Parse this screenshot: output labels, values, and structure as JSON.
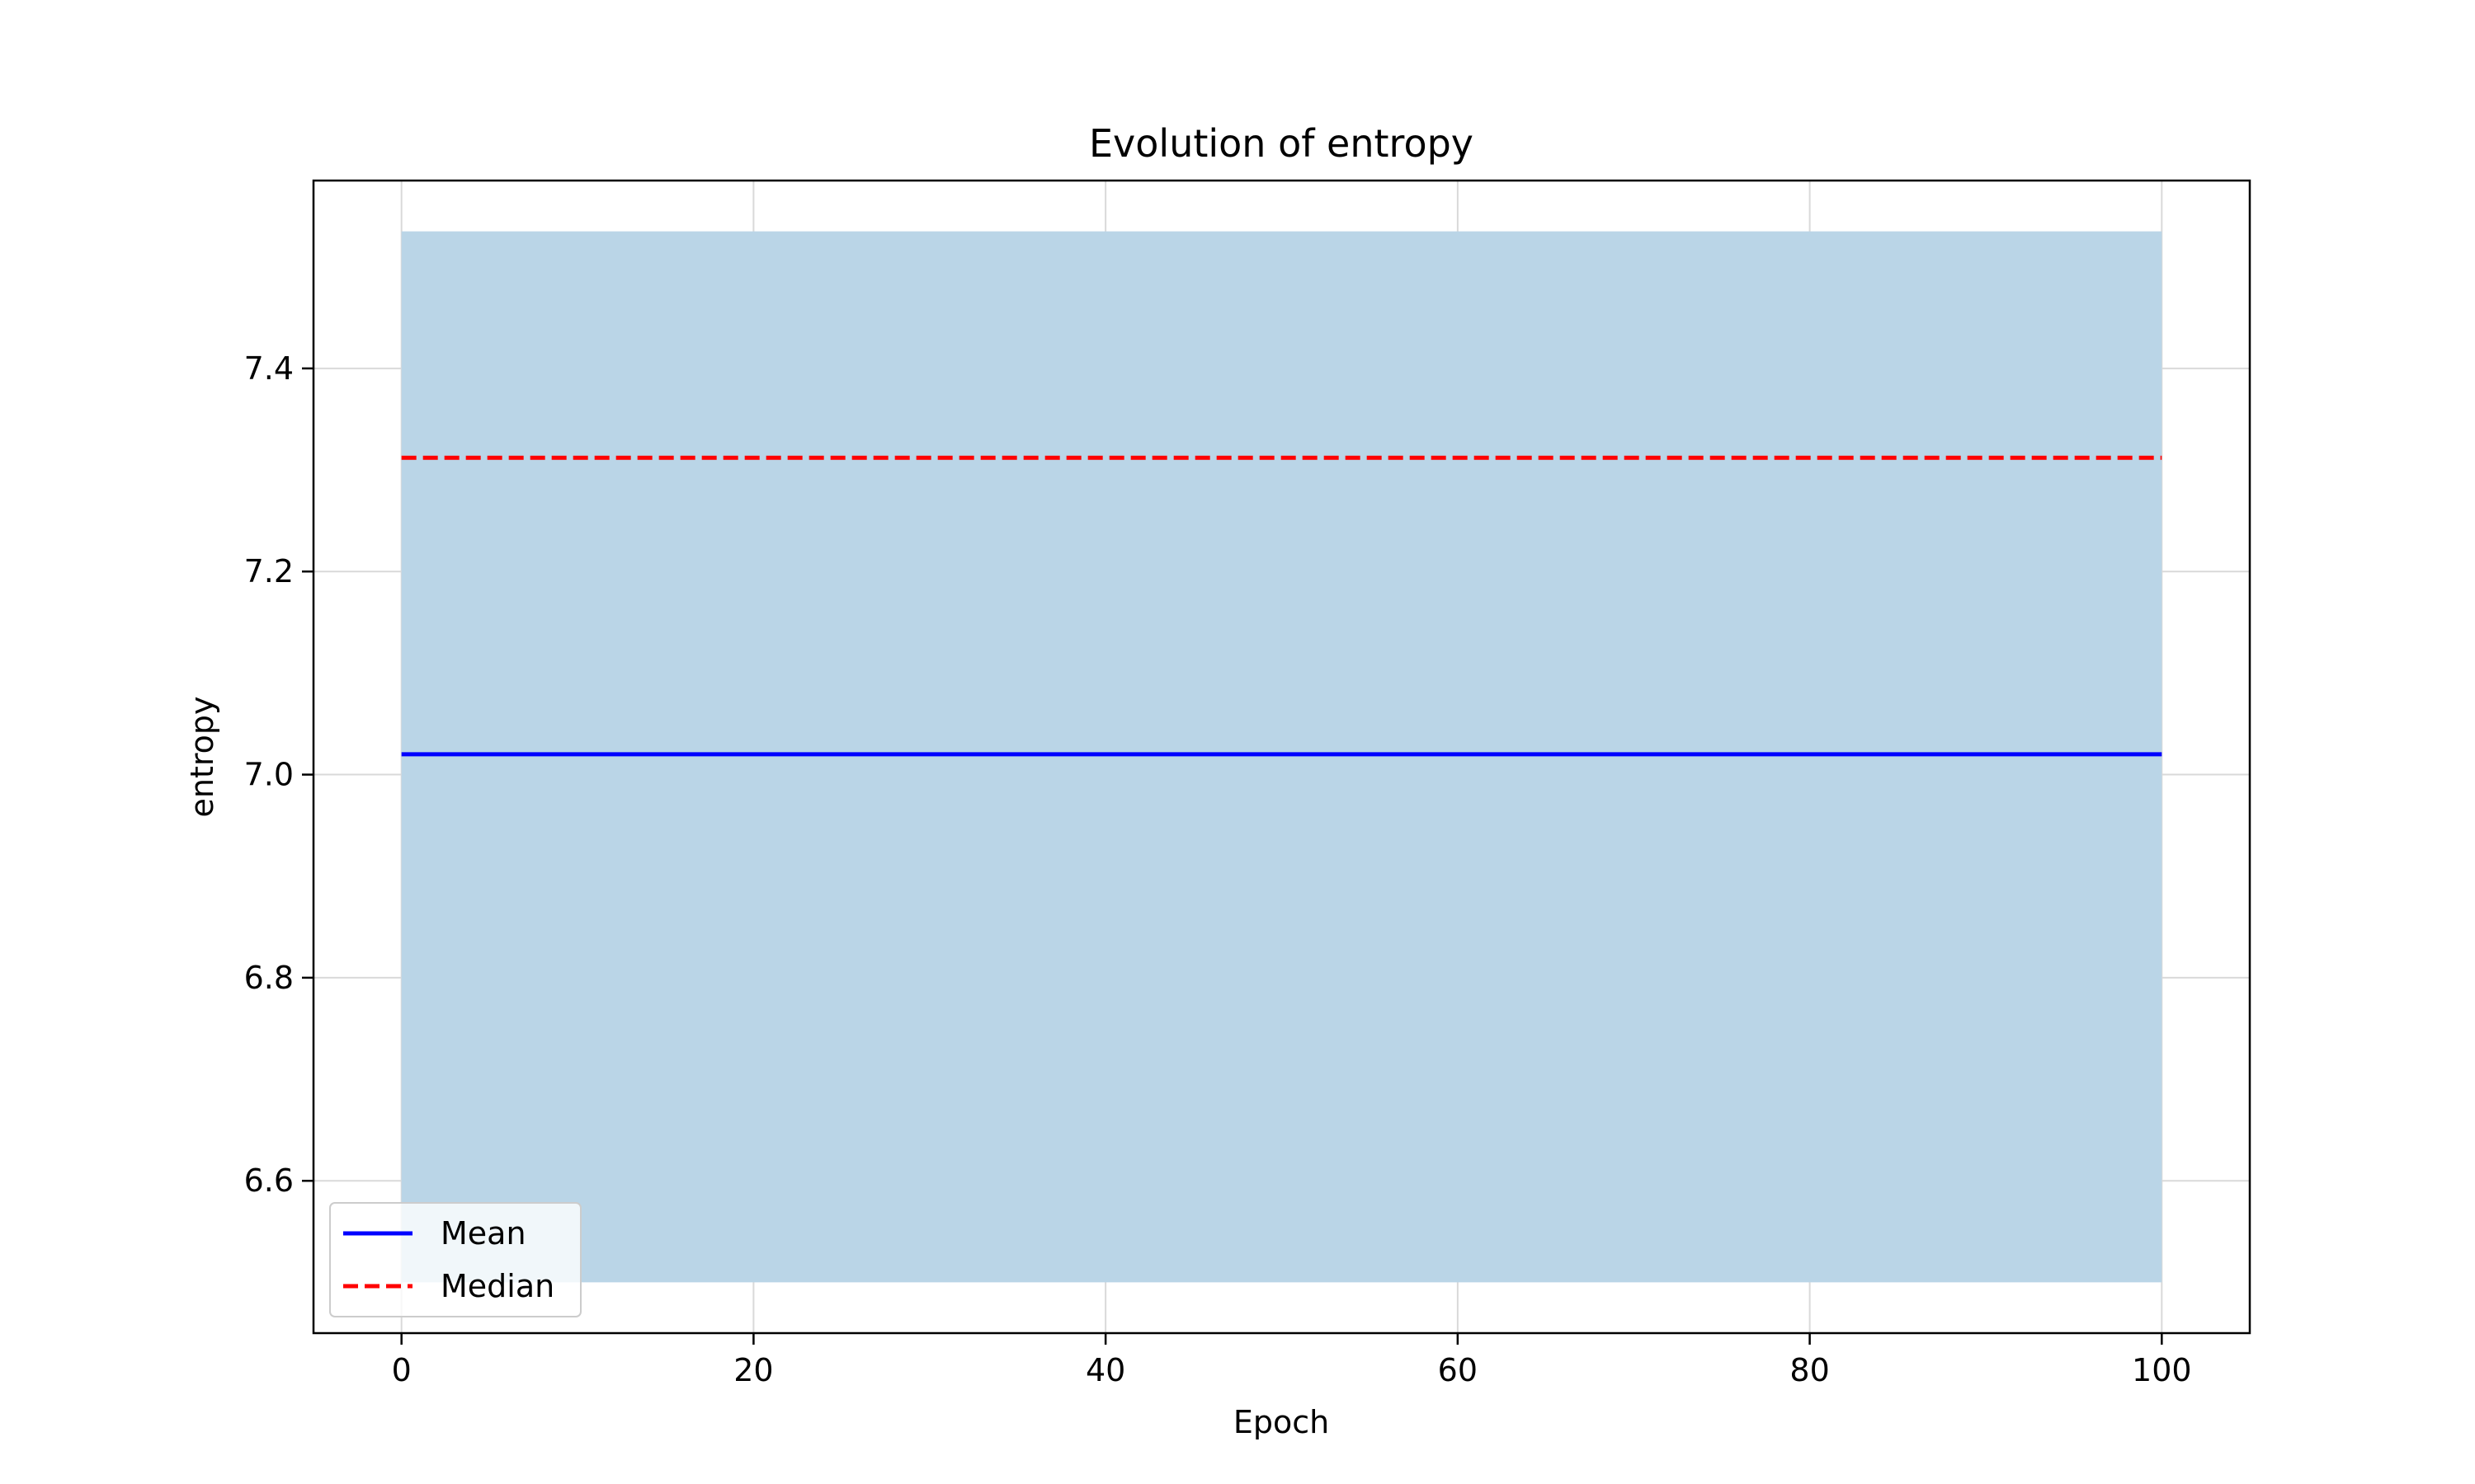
{
  "chart_data": {
    "type": "line",
    "title": "Evolution of entropy",
    "xlabel": "Epoch",
    "ylabel": "entropy",
    "xlim": [
      -5,
      105
    ],
    "ylim": [
      6.45,
      7.585
    ],
    "xticks": [
      0,
      20,
      40,
      60,
      80,
      100
    ],
    "yticks": [
      6.6,
      6.8,
      7.0,
      7.2,
      7.4
    ],
    "xtick_labels": [
      "0",
      "20",
      "40",
      "60",
      "80",
      "100"
    ],
    "ytick_labels": [
      "6.6",
      "6.8",
      "7.0",
      "7.2",
      "7.4"
    ],
    "grid": true,
    "legend_position": "lower-left",
    "x": [
      0,
      100
    ],
    "band": {
      "lower": [
        6.5,
        6.5
      ],
      "upper": [
        7.535,
        7.535
      ],
      "color": "#bad5e7"
    },
    "series": [
      {
        "name": "Mean",
        "values": [
          7.02,
          7.02
        ],
        "color": "#0000ff",
        "style": "solid"
      },
      {
        "name": "Median",
        "values": [
          7.312,
          7.312
        ],
        "color": "#ff0000",
        "style": "dashed"
      }
    ]
  }
}
